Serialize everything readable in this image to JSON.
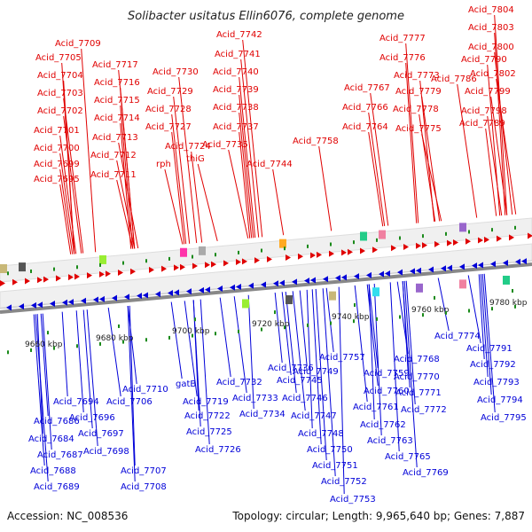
{
  "title": "Solibacter usitatus Ellin6076, complete genome",
  "accession_label": "Accession: NC_008536",
  "summary_label": "Topology: circular; Length: 9,965,640 bp; Genes: 7,887",
  "colors": {
    "forward": "#e00000",
    "reverse": "#0000d8",
    "backbone": "#888888",
    "tick": "#1a8a1a"
  },
  "scale_ticks": [
    "9660 kbp",
    "9680 kbp",
    "9700 kbp",
    "9720 kbp",
    "9740 kbp",
    "9760 kbp",
    "9780 kbp"
  ],
  "forward_genes": [
    "Acid_7695",
    "Acid_7699",
    "Acid_7700",
    "Acid_7701",
    "Acid_7702",
    "Acid_7703",
    "Acid_7704",
    "Acid_7705",
    "Acid_7709",
    "Acid_7711",
    "Acid_7712",
    "Acid_7713",
    "Acid_7714",
    "Acid_7715",
    "Acid_7716",
    "Acid_7717",
    "rph",
    "thiG",
    "Acid_7724",
    "Acid_7727",
    "Acid_7728",
    "Acid_7729",
    "Acid_7730",
    "Acid_7735",
    "Acid_7737",
    "Acid_7738",
    "Acid_7739",
    "Acid_7740",
    "Acid_7741",
    "Acid_7742",
    "Acid_7744",
    "Acid_7758",
    "Acid_7764",
    "Acid_7766",
    "Acid_7767",
    "Acid_7775",
    "Acid_7776",
    "Acid_7777",
    "Acid_7773",
    "Acid_7778",
    "Acid_7779",
    "Acid_7786",
    "Acid_7789",
    "Acid_7790",
    "Acid_7798",
    "Acid_7799",
    "Acid_7800",
    "Acid_7802",
    "Acid_7803",
    "Acid_7804"
  ],
  "reverse_genes": [
    "Acid_7684",
    "Acid_7686",
    "Acid_7687",
    "Acid_7688",
    "Acid_7689",
    "Acid_7694",
    "Acid_7696",
    "Acid_7697",
    "Acid_7698",
    "Acid_7706",
    "Acid_7707",
    "Acid_7708",
    "Acid_7710",
    "gatB",
    "Acid_7719",
    "Acid_7722",
    "Acid_7725",
    "Acid_7726",
    "Acid_7732",
    "Acid_7733",
    "Acid_7734",
    "Acid_7736",
    "Acid_7745",
    "Acid_7746",
    "Acid_7747",
    "Acid_7748",
    "Acid_7749",
    "Acid_7750",
    "Acid_7751",
    "Acid_7752",
    "Acid_7753",
    "Acid_7757",
    "Acid_7759",
    "Acid_7760",
    "Acid_7761",
    "Acid_7762",
    "Acid_7763",
    "Acid_7765",
    "Acid_7768",
    "Acid_7769",
    "Acid_7770",
    "Acid_7771",
    "Acid_7772",
    "Acid_7774",
    "Acid_7791",
    "Acid_7792",
    "Acid_7793",
    "Acid_7794",
    "Acid_7795"
  ]
}
